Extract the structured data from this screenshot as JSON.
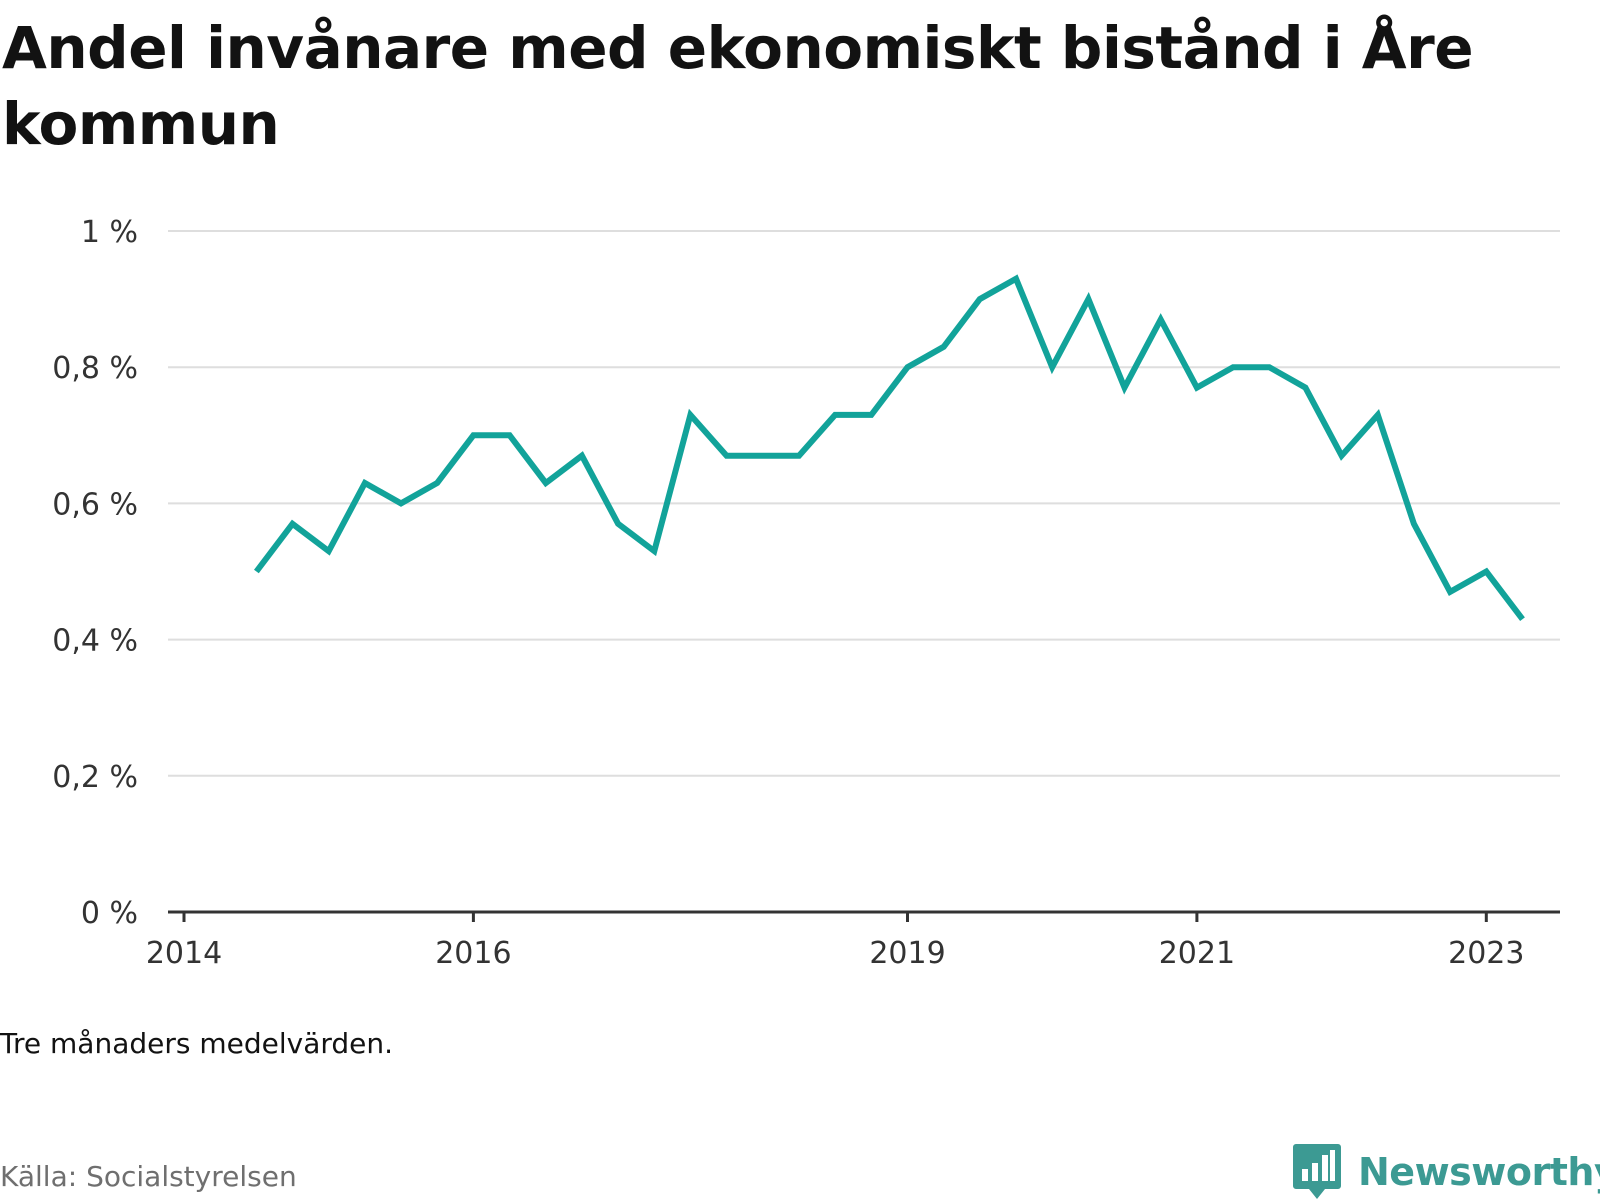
{
  "title": "Andel invånare med ekonomiskt bistånd i Åre kommun",
  "note": "Tre månaders medelvärden.",
  "source": "Källa: Socialstyrelsen",
  "brand": {
    "name": "Newsworthy",
    "icon": "newsworthy-logo-icon",
    "color": "#3c9a93"
  },
  "colors": {
    "line": "#12a39a",
    "grid": "#dedede",
    "axis": "#333333",
    "text": "#333333"
  },
  "chart_data": {
    "type": "line",
    "title": "Andel invånare med ekonomiskt bistånd i Åre kommun",
    "xlabel": "",
    "ylabel": "",
    "x_ticks": [
      "2014",
      "2016",
      "2019",
      "2021",
      "2023"
    ],
    "y_ticks": [
      "0 %",
      "0,2 %",
      "0,4 %",
      "0,6 %",
      "0,8 %",
      "1 %"
    ],
    "ylim": [
      0,
      1
    ],
    "grid": true,
    "series": [
      {
        "x": [
          "2014-07",
          "2014-10",
          "2015-01",
          "2015-04",
          "2015-07",
          "2015-10",
          "2016-01",
          "2016-04",
          "2016-07",
          "2016-10",
          "2017-01",
          "2017-04",
          "2017-07",
          "2017-10",
          "2018-01",
          "2018-04",
          "2018-07",
          "2018-10",
          "2019-01",
          "2019-04",
          "2019-07",
          "2019-10",
          "2020-01",
          "2020-04",
          "2020-07",
          "2020-10",
          "2021-01",
          "2021-04",
          "2021-07",
          "2021-10",
          "2022-01",
          "2022-04",
          "2022-07",
          "2022-10",
          "2023-01",
          "2023-04"
        ],
        "values": [
          0.5,
          0.57,
          0.53,
          0.63,
          0.6,
          0.63,
          0.7,
          0.7,
          0.63,
          0.67,
          0.57,
          0.53,
          0.73,
          0.67,
          0.67,
          0.67,
          0.73,
          0.73,
          0.8,
          0.83,
          0.9,
          0.93,
          0.8,
          0.9,
          0.77,
          0.87,
          0.77,
          0.8,
          0.8,
          0.77,
          0.67,
          0.73,
          0.57,
          0.47,
          0.5,
          0.43
        ]
      }
    ]
  }
}
